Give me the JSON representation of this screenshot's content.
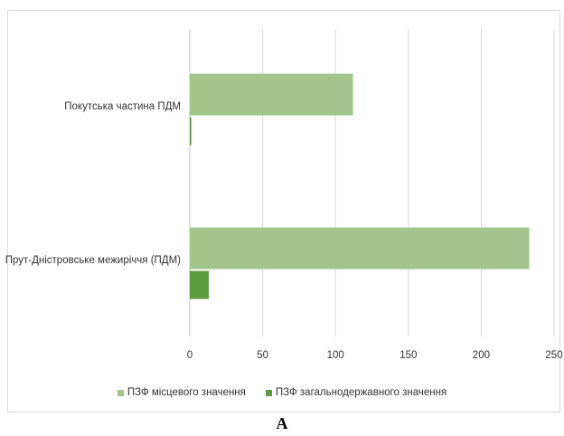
{
  "chart_data": {
    "type": "bar",
    "orientation": "horizontal",
    "categories": [
      "Покутська частина ПДМ",
      "Прут-Дністровське межиріччя (ПДМ)"
    ],
    "series": [
      {
        "name": "ПЗФ місцевого значення",
        "values": [
          112,
          233
        ],
        "color": "#a3c58c"
      },
      {
        "name": "ПЗФ загальнодержавного значення",
        "values": [
          1,
          13
        ],
        "color": "#5e9a3e"
      }
    ],
    "xlim": [
      0,
      250
    ],
    "xticks": [
      0,
      50,
      100,
      150,
      200,
      250
    ],
    "grid": true,
    "legend_position": "bottom",
    "panel_label": "А"
  }
}
